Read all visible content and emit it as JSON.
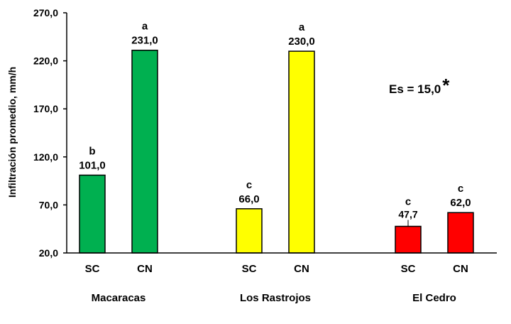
{
  "chart_data": {
    "type": "bar",
    "ylabel": "Infiltración promedio, mm/h",
    "ylim": [
      20,
      270
    ],
    "yticks": [
      "20,0",
      "70,0",
      "120,0",
      "170,0",
      "220,0",
      "270,0"
    ],
    "annotation": "Es = 15,0",
    "annotation_mark": "*",
    "groups": [
      {
        "name": "Macaracas",
        "color": "#00b050",
        "bars": [
          {
            "category": "SC",
            "value": 101.0,
            "value_label": "101,0",
            "letter": "b"
          },
          {
            "category": "CN",
            "value": 231.0,
            "value_label": "231,0",
            "letter": "a"
          }
        ]
      },
      {
        "name": "Los Rastrojos",
        "color": "#ffff00",
        "bars": [
          {
            "category": "SC",
            "value": 66.0,
            "value_label": "66,0",
            "letter": "c"
          },
          {
            "category": "CN",
            "value": 230.0,
            "value_label": "230,0",
            "letter": "a"
          }
        ]
      },
      {
        "name": "El Cedro",
        "color": "#ff0000",
        "bars": [
          {
            "category": "SC",
            "value": 47.7,
            "value_label": "47,7",
            "letter": "c"
          },
          {
            "category": "CN",
            "value": 62.0,
            "value_label": "62,0",
            "letter": "c"
          }
        ]
      }
    ]
  }
}
